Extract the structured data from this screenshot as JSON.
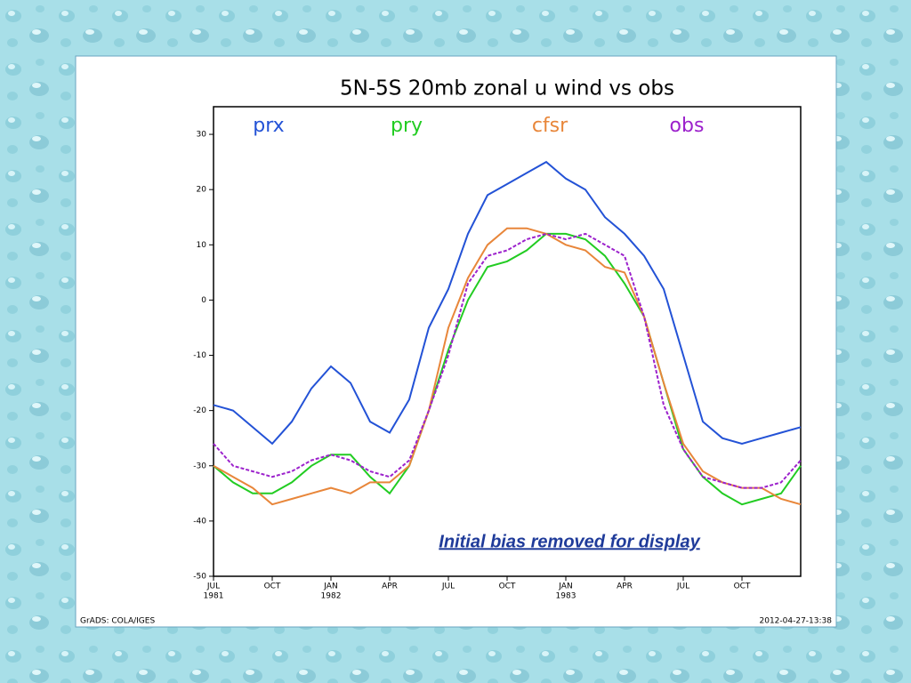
{
  "chart_data": {
    "type": "line",
    "title": "5N-5S 20mb zonal u wind vs obs",
    "annotation": "Initial bias removed for display",
    "footer_left": "GrADS: COLA/IGES",
    "footer_right": "2012-04-27-13:38",
    "x": [
      0,
      1,
      2,
      3,
      4,
      5,
      6,
      7,
      8,
      9,
      10,
      11,
      12,
      13,
      14,
      15,
      16,
      17,
      18,
      19,
      20,
      21,
      22,
      23,
      24,
      25,
      26,
      27,
      28,
      29,
      30
    ],
    "xlim": [
      0,
      30
    ],
    "xticks": [
      {
        "value": 0,
        "label": "JUL",
        "year": "1981"
      },
      {
        "value": 3,
        "label": "OCT"
      },
      {
        "value": 6,
        "label": "JAN",
        "year": "1982"
      },
      {
        "value": 9,
        "label": "APR"
      },
      {
        "value": 12,
        "label": "JUL"
      },
      {
        "value": 15,
        "label": "OCT"
      },
      {
        "value": 18,
        "label": "JAN",
        "year": "1983"
      },
      {
        "value": 21,
        "label": "APR"
      },
      {
        "value": 24,
        "label": "JUL"
      },
      {
        "value": 27,
        "label": "OCT"
      }
    ],
    "ylim": [
      -50,
      35
    ],
    "yticks": [
      30,
      20,
      10,
      0,
      -10,
      -20,
      -30,
      -40,
      -50
    ],
    "series": [
      {
        "name": "prx",
        "color": "#2352d6",
        "values": [
          -19,
          -20,
          -23,
          -26,
          -22,
          -16,
          -12,
          -15,
          -22,
          -24,
          -18,
          -5,
          2,
          12,
          19,
          21,
          23,
          25,
          22,
          20,
          15,
          12,
          8,
          2,
          -10,
          -22,
          -25,
          -26,
          -25,
          -24,
          -23
        ]
      },
      {
        "name": "pry",
        "color": "#22cc22",
        "values": [
          -30,
          -33,
          -35,
          -35,
          -33,
          -30,
          -28,
          -28,
          -32,
          -35,
          -30,
          -20,
          -9,
          0,
          6,
          7,
          9,
          12,
          12,
          11,
          8,
          3,
          -3,
          -15,
          -27,
          -32,
          -35,
          -37,
          -36,
          -35,
          -30
        ]
      },
      {
        "name": "cfsr",
        "color": "#e8863a",
        "values": [
          -30,
          -32,
          -34,
          -37,
          -36,
          -35,
          -34,
          -35,
          -33,
          -33,
          -30,
          -20,
          -5,
          4,
          10,
          13,
          13,
          12,
          10,
          9,
          6,
          5,
          -3,
          -15,
          -26,
          -31,
          -33,
          -34,
          -34,
          -36,
          -37
        ]
      },
      {
        "name": "obs",
        "color": "#9c22cc",
        "dashed": true,
        "values": [
          -26,
          -30,
          -31,
          -32,
          -31,
          -29,
          -28,
          -29,
          -31,
          -32,
          -29,
          -20,
          -10,
          3,
          8,
          9,
          11,
          12,
          11,
          12,
          10,
          8,
          -3,
          -19,
          -27,
          -32,
          -33,
          -34,
          -34,
          -33,
          -29
        ]
      }
    ]
  }
}
